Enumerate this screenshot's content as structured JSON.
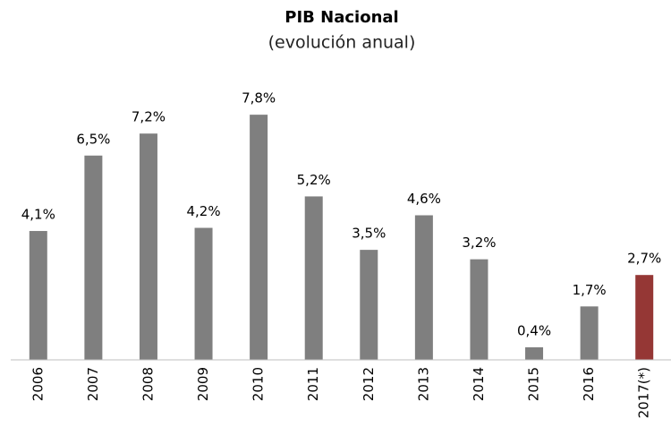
{
  "chart_data": {
    "type": "bar",
    "title": "PIB Nacional",
    "subtitle": "(evolución anual)",
    "categories": [
      "2006",
      "2007",
      "2008",
      "2009",
      "2010",
      "2011",
      "2012",
      "2013",
      "2014",
      "2015",
      "2016",
      "2017(*)"
    ],
    "values": [
      4.1,
      6.5,
      7.2,
      4.2,
      7.8,
      5.2,
      3.5,
      4.6,
      3.2,
      0.4,
      1.7,
      2.7
    ],
    "value_labels": [
      "4,1%",
      "6,5%",
      "7,2%",
      "4,2%",
      "7,8%",
      "5,2%",
      "3,5%",
      "4,6%",
      "3,2%",
      "0,4%",
      "1,7%",
      "2,7%"
    ],
    "colors": [
      "#7f7f7f",
      "#7f7f7f",
      "#7f7f7f",
      "#7f7f7f",
      "#7f7f7f",
      "#7f7f7f",
      "#7f7f7f",
      "#7f7f7f",
      "#7f7f7f",
      "#7f7f7f",
      "#7f7f7f",
      "#953735"
    ],
    "ylim": [
      0,
      9
    ]
  }
}
